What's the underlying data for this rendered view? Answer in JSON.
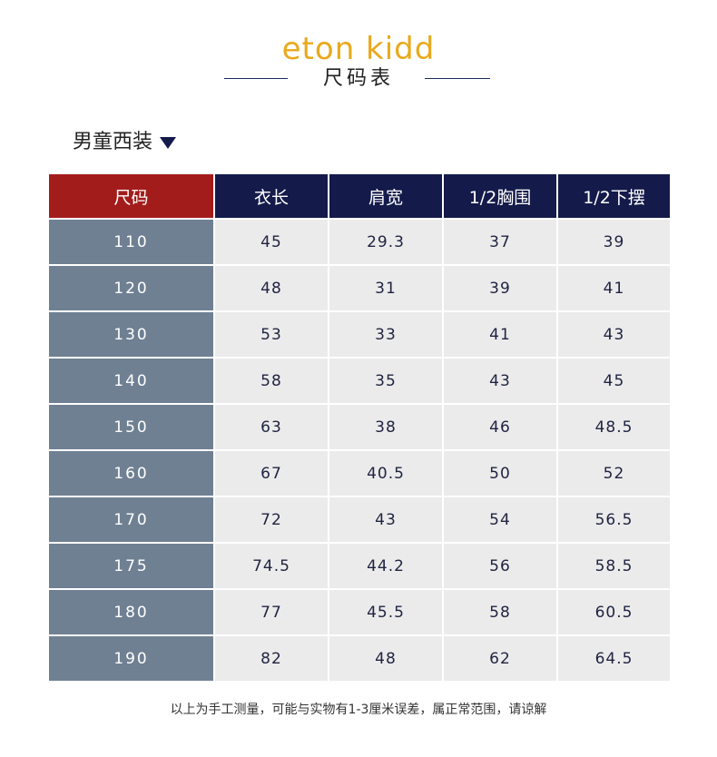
{
  "brand": {
    "logo_text": "eton kidd",
    "logo_color": "#e8a91c"
  },
  "header": {
    "title": "尺码表"
  },
  "section": {
    "title": "男童西装"
  },
  "table": {
    "columns": [
      "尺码",
      "衣长",
      "肩宽",
      "1/2胸围",
      "1/2下摆"
    ],
    "rows": [
      [
        "110",
        "45",
        "29.3",
        "37",
        "39"
      ],
      [
        "120",
        "48",
        "31",
        "39",
        "41"
      ],
      [
        "130",
        "53",
        "33",
        "41",
        "43"
      ],
      [
        "140",
        "58",
        "35",
        "43",
        "45"
      ],
      [
        "150",
        "63",
        "38",
        "46",
        "48.5"
      ],
      [
        "160",
        "67",
        "40.5",
        "50",
        "52"
      ],
      [
        "170",
        "72",
        "43",
        "54",
        "56.5"
      ],
      [
        "175",
        "74.5",
        "44.2",
        "56",
        "58.5"
      ],
      [
        "180",
        "77",
        "45.5",
        "58",
        "60.5"
      ],
      [
        "190",
        "82",
        "48",
        "62",
        "64.5"
      ]
    ]
  },
  "footer": {
    "note": "以上为手工测量，可能与实物有1-3厘米误差，属正常范围，请谅解"
  },
  "colors": {
    "header_navy": "#141a4a",
    "header_red": "#a31c1c",
    "size_col_bg": "#6f8093",
    "cell_bg": "#ebebeb"
  }
}
